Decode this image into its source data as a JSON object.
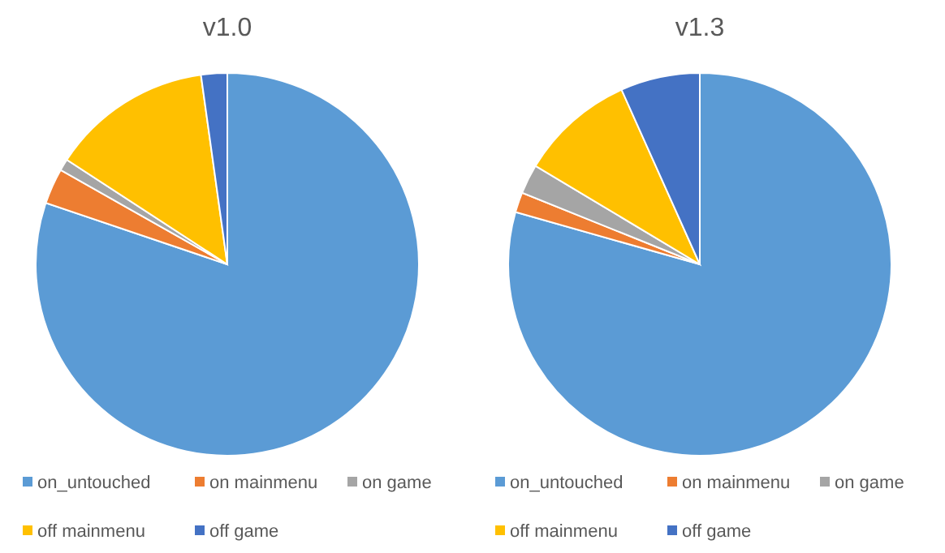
{
  "chart_data": [
    {
      "type": "pie",
      "title": "v1.0",
      "categories": [
        "on_untouched",
        "on mainmenu",
        "on game",
        "off mainmenu",
        "off game"
      ],
      "values": [
        80.2,
        3,
        1,
        13.6,
        2.2
      ],
      "colors": [
        "#5b9bd5",
        "#ed7d31",
        "#a5a5a5",
        "#ffc000",
        "#4472c4"
      ],
      "legend": "bottom"
    },
    {
      "type": "pie",
      "title": "v1.3",
      "categories": [
        "on_untouched",
        "on mainmenu",
        "on game",
        "off mainmenu",
        "off game"
      ],
      "values": [
        79.4,
        1.7,
        2.5,
        9.7,
        6.7
      ],
      "colors": [
        "#5b9bd5",
        "#ed7d31",
        "#a5a5a5",
        "#ffc000",
        "#4472c4"
      ],
      "legend": "bottom"
    }
  ]
}
